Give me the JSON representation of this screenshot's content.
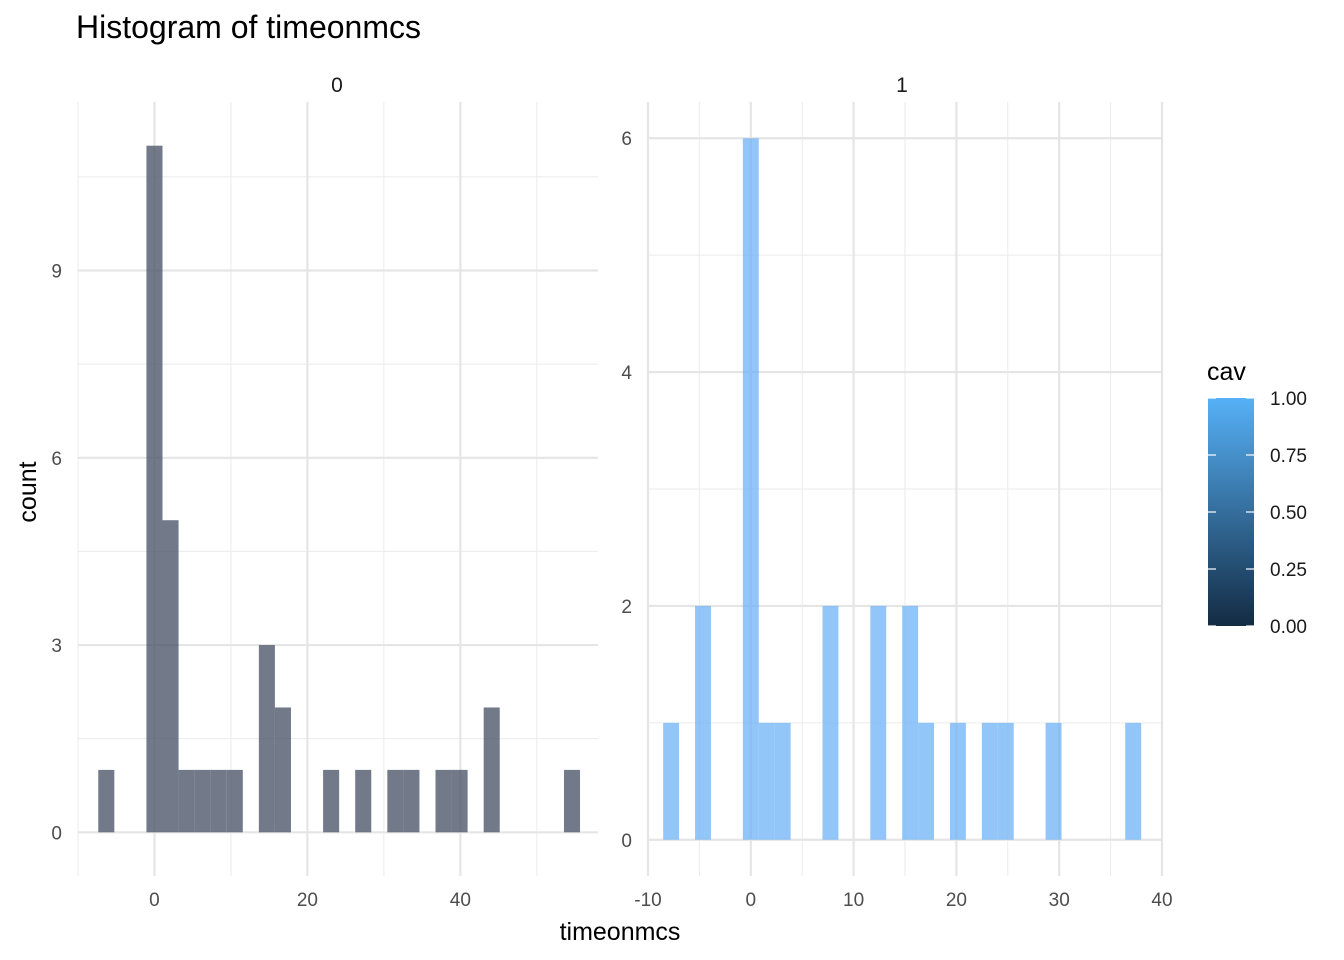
{
  "chart_data": {
    "type": "bar",
    "title": "Histogram of timeonmcs",
    "xlabel": "timeonmcs",
    "ylabel": "count",
    "grid": true,
    "legend": {
      "title": "cav",
      "placement": "right",
      "type": "colorbar",
      "breaks": [
        "1.00",
        "0.75",
        "0.50",
        "0.25",
        "0.00"
      ],
      "low_color": "#132B43",
      "high_color": "#56B1F7"
    },
    "panels": [
      {
        "strip": "0",
        "fill_color": "#4a5568",
        "xlim": [
          -10,
          58
        ],
        "ylim": [
          -0.7,
          11.7
        ],
        "x_ticks": [
          "0",
          "20",
          "40"
        ],
        "x_tick_values": [
          0,
          20,
          40
        ],
        "y_ticks": [
          "0",
          "3",
          "6",
          "9"
        ],
        "y_tick_values": [
          0,
          3,
          6,
          9
        ],
        "bin_width": 2.1,
        "bins": [
          {
            "x": -6.3,
            "count": 1
          },
          {
            "x": 0.0,
            "count": 11
          },
          {
            "x": 2.1,
            "count": 5
          },
          {
            "x": 4.2,
            "count": 1
          },
          {
            "x": 6.3,
            "count": 1
          },
          {
            "x": 8.4,
            "count": 1
          },
          {
            "x": 10.5,
            "count": 1
          },
          {
            "x": 14.7,
            "count": 3
          },
          {
            "x": 16.8,
            "count": 2
          },
          {
            "x": 23.1,
            "count": 1
          },
          {
            "x": 27.3,
            "count": 1
          },
          {
            "x": 31.5,
            "count": 1
          },
          {
            "x": 33.6,
            "count": 1
          },
          {
            "x": 37.8,
            "count": 1
          },
          {
            "x": 39.9,
            "count": 1
          },
          {
            "x": 44.1,
            "count": 2
          },
          {
            "x": 54.6,
            "count": 1
          }
        ]
      },
      {
        "strip": "1",
        "fill_color": "#6ab0f5",
        "xlim": [
          -10,
          40
        ],
        "ylim": [
          -0.31,
          6.31
        ],
        "x_ticks": [
          "-10",
          "0",
          "10",
          "20",
          "30",
          "40"
        ],
        "x_tick_values": [
          -10,
          0,
          10,
          20,
          30,
          40
        ],
        "y_ticks": [
          "0",
          "2",
          "4",
          "6"
        ],
        "y_tick_values": [
          0,
          2,
          4,
          6
        ],
        "bin_width": 1.55,
        "bins": [
          {
            "x": -7.75,
            "count": 1
          },
          {
            "x": -4.65,
            "count": 2
          },
          {
            "x": 0.0,
            "count": 6
          },
          {
            "x": 1.55,
            "count": 1
          },
          {
            "x": 3.1,
            "count": 1
          },
          {
            "x": 7.75,
            "count": 2
          },
          {
            "x": 12.4,
            "count": 2
          },
          {
            "x": 15.5,
            "count": 2
          },
          {
            "x": 17.05,
            "count": 1
          },
          {
            "x": 20.15,
            "count": 1
          },
          {
            "x": 23.25,
            "count": 1
          },
          {
            "x": 24.8,
            "count": 1
          },
          {
            "x": 29.45,
            "count": 1
          },
          {
            "x": 37.2,
            "count": 1
          }
        ]
      }
    ]
  }
}
